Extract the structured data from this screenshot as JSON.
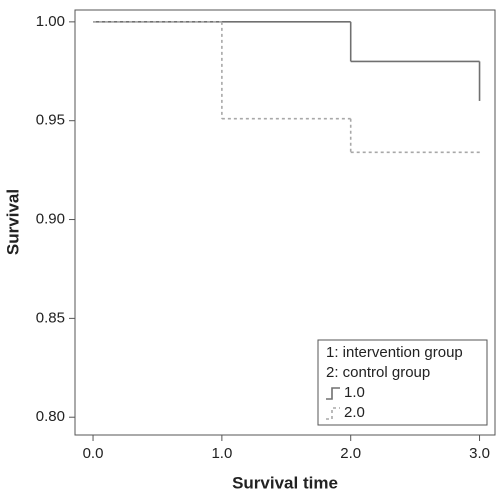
{
  "chart_data": {
    "type": "step",
    "x_label": "Survival time",
    "y_label": "Survival",
    "xlim": [
      -0.14,
      3.12
    ],
    "ylim": [
      0.791,
      1.006
    ],
    "xticks": [
      {
        "value": 0,
        "label": "0.0"
      },
      {
        "value": 1,
        "label": "1.0"
      },
      {
        "value": 2,
        "label": "2.0"
      },
      {
        "value": 3,
        "label": "3.0"
      }
    ],
    "yticks": [
      {
        "value": 0.8,
        "label": "0.80"
      },
      {
        "value": 0.85,
        "label": "0.85"
      },
      {
        "value": 0.9,
        "label": "0.90"
      },
      {
        "value": 0.95,
        "label": "0.95"
      },
      {
        "value": 1,
        "label": "1.00"
      }
    ],
    "legend_title": [
      "1: intervention group",
      "2: control group"
    ],
    "legend_position": "lower right",
    "series": [
      {
        "name": "1.0",
        "color": "#707070",
        "dash": "solid",
        "x": [
          0,
          2,
          3
        ],
        "values": [
          1.0,
          0.98,
          0.96
        ]
      },
      {
        "name": "2.0",
        "color": "#a8a8a8",
        "dash": "dotted",
        "x": [
          0,
          1,
          2,
          3
        ],
        "values": [
          1.0,
          0.951,
          0.934,
          0.934
        ]
      }
    ]
  }
}
